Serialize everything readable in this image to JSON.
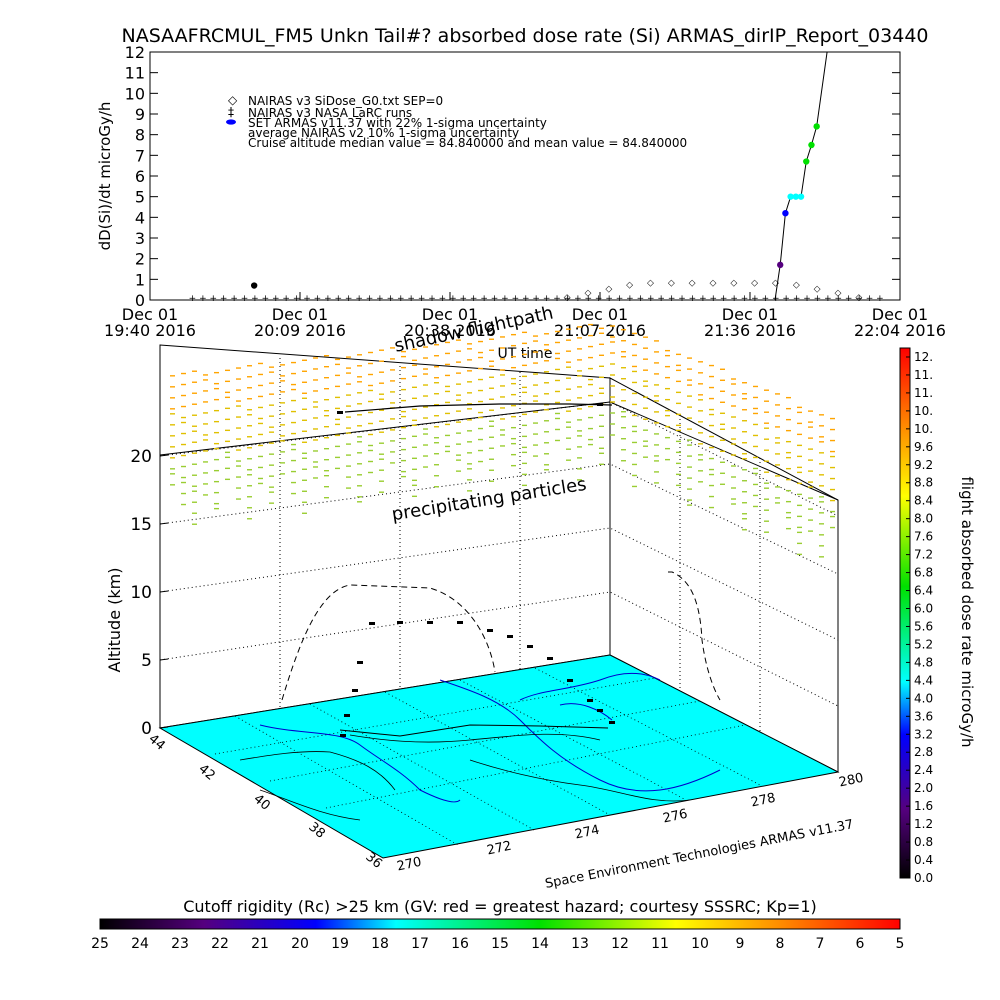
{
  "title": "NASAAFRCMUL_FM5 Unkn Tail#? absorbed dose rate (Si) ARMAS_dirIP_Report_03440",
  "chart_data": [
    {
      "type": "line",
      "ylabel": "dD(Si)/dt microGy/h",
      "xlabel": "UT time",
      "ylim": [
        0,
        12
      ],
      "yticks": [
        "0",
        "1",
        "2",
        "3",
        "4",
        "5",
        "6",
        "7",
        "8",
        "9",
        "10",
        "11",
        "12"
      ],
      "xticks": [
        {
          "line1": "Dec 01",
          "line2": "19:40 2016"
        },
        {
          "line1": "Dec 01",
          "line2": "20:09 2016"
        },
        {
          "line1": "Dec 01",
          "line2": "20:38 2016"
        },
        {
          "line1": "Dec 01",
          "line2": "21:07 2016"
        },
        {
          "line1": "Dec 01",
          "line2": "21:36 2016"
        },
        {
          "line1": "Dec 01",
          "line2": "22:04 2016"
        }
      ],
      "legend": [
        "NAIRAS v3 SiDose_G0.txt SEP=0",
        "NAIRAS v3 NASA LaRC runs",
        "SET ARMAS v11.37 with 22% 1-sigma uncertainty",
        "average NAIRAS v2 10% 1-sigma uncertainty",
        "Cruise altitude median value = 84.840000 and mean value = 84.840000"
      ],
      "series": [
        {
          "name": "NAIRAS v3 SiDose_G0.txt SEP=0",
          "x_minutes": [
            80,
            84,
            88,
            92,
            96,
            100,
            104,
            108,
            112,
            116,
            120,
            124,
            128,
            132,
            136
          ],
          "values": [
            0.2,
            0.4,
            0.6,
            0.8,
            0.9,
            0.9,
            0.9,
            0.9,
            0.9,
            0.9,
            0.9,
            0.8,
            0.6,
            0.4,
            0.2
          ]
        },
        {
          "name": "SET ARMAS v11.37 with 22% 1-sigma uncertainty",
          "x_minutes": [
            20,
            121,
            122,
            123,
            124,
            125,
            126,
            127,
            128
          ],
          "values": [
            0.7,
            1.7,
            4.2,
            5.0,
            5.0,
            5.0,
            6.7,
            7.5,
            8.4
          ]
        }
      ]
    },
    {
      "type": "scatter",
      "zlabel": "Altitude (km)",
      "zticks": [
        "0",
        "5",
        "10",
        "15",
        "20"
      ],
      "lat_ticks": [
        "44",
        "42",
        "40",
        "38",
        "36"
      ],
      "lon_ticks": [
        "270",
        "272",
        "274",
        "276",
        "278",
        "280"
      ],
      "annotations": [
        "precipitating particles",
        "shadow flightpath"
      ],
      "credit": "Space Environment Technologies ARMAS v11.37"
    }
  ],
  "colorbar_right": {
    "label": "flight absorbed dose rate microGy/h",
    "ticks": [
      "0.0",
      "0.4",
      "0.8",
      "1.2",
      "1.6",
      "2.0",
      "2.4",
      "2.8",
      "3.2",
      "3.6",
      "4.0",
      "4.4",
      "4.8",
      "5.2",
      "5.6",
      "6.0",
      "6.4",
      "6.8",
      "7.2",
      "7.6",
      "8.0",
      "8.4",
      "8.8",
      "9.2",
      "9.6",
      "10.",
      "10.",
      "11.",
      "11.",
      "12."
    ]
  },
  "colorbar_bottom": {
    "label": "Cutoff rigidity (Rc) >25 km (GV: red = greatest hazard; courtesy SSSRC; Kp=1)",
    "ticks": [
      "25",
      "24",
      "23",
      "22",
      "21",
      "20",
      "19",
      "18",
      "17",
      "16",
      "15",
      "14",
      "13",
      "12",
      "11",
      "10",
      "9",
      "8",
      "7",
      "6",
      "5"
    ]
  },
  "colors": {
    "map_surface": "#00ffff",
    "track": "#000000",
    "coast": "#0000ff"
  }
}
